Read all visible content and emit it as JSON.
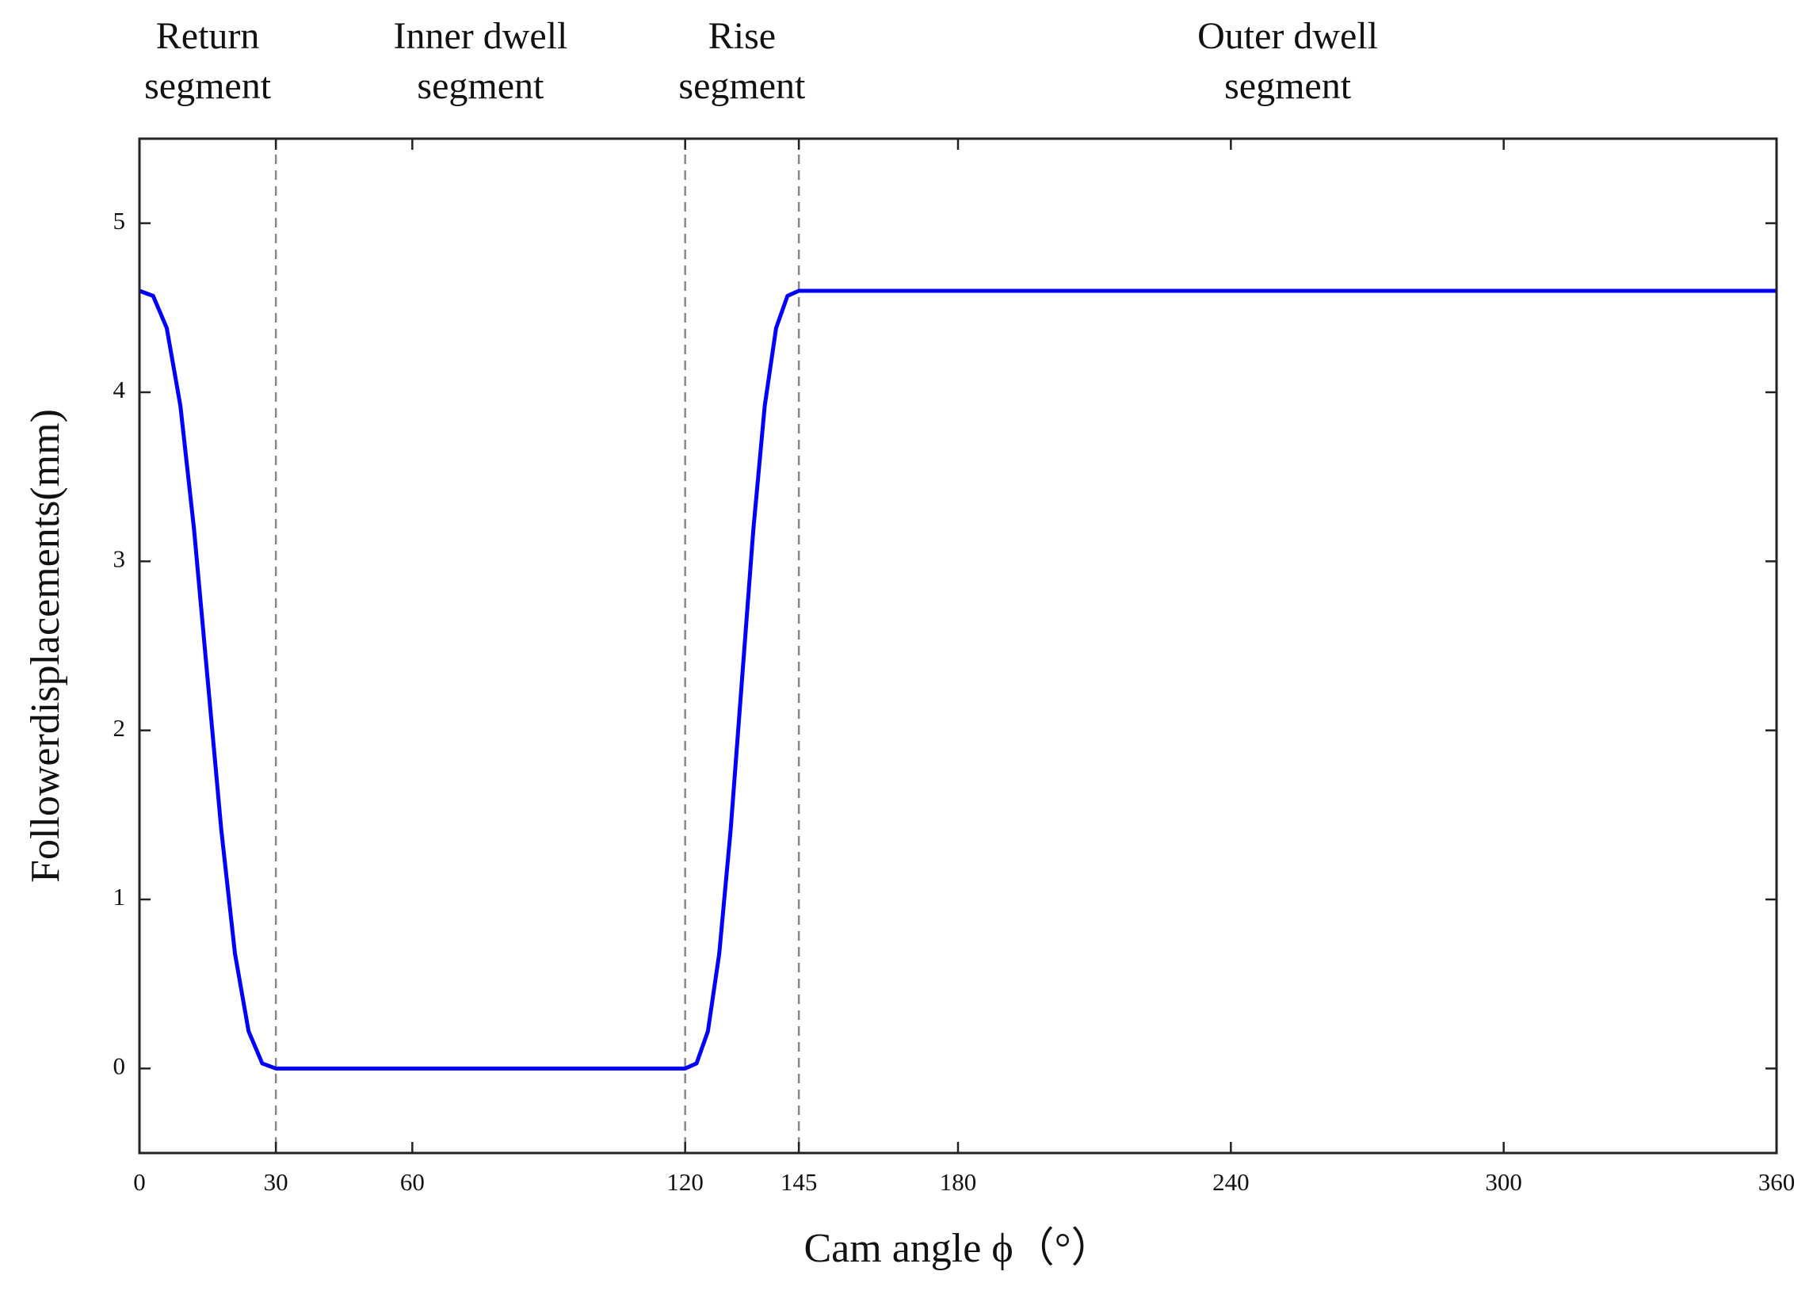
{
  "chart_data": {
    "type": "line",
    "xlabel": "Cam angle ϕ（°）",
    "ylabel": "Followerdisplacements(mm)",
    "x": [
      0,
      3,
      6,
      9,
      12,
      15,
      18,
      21,
      24,
      27,
      30,
      120,
      122.5,
      125,
      127.5,
      130,
      132.5,
      135,
      137.5,
      140,
      142.5,
      145,
      360
    ],
    "values": [
      4.6,
      4.57,
      4.38,
      3.92,
      3.19,
      2.3,
      1.41,
      0.68,
      0.22,
      0.03,
      0,
      0,
      0.03,
      0.22,
      0.68,
      1.41,
      2.3,
      3.19,
      3.92,
      4.38,
      4.57,
      4.6,
      4.6
    ],
    "color": "#0000ff",
    "xlim": [
      0,
      360
    ],
    "ylim": [
      -0.5,
      5.5
    ],
    "xticks": [
      0,
      30,
      60,
      120,
      145,
      180,
      240,
      300,
      360
    ],
    "yticks": [
      0,
      1,
      2,
      3,
      4,
      5
    ],
    "vlines": [
      30,
      120,
      145
    ],
    "segments": [
      [
        "Return",
        "segment"
      ],
      [
        "Inner dwell",
        "segment"
      ],
      [
        "Rise",
        "segment"
      ],
      [
        "Outer dwell",
        "segment"
      ]
    ]
  }
}
